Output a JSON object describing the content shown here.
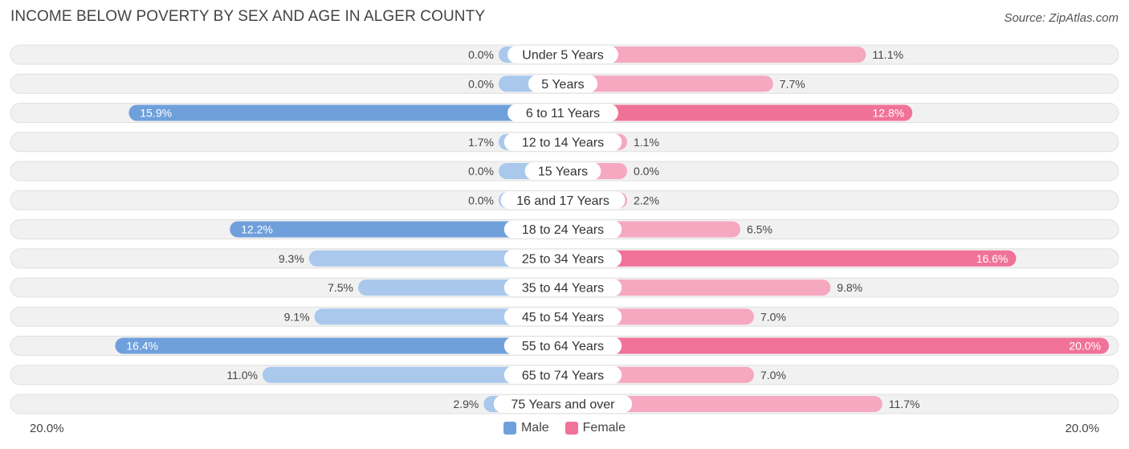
{
  "title": "INCOME BELOW POVERTY BY SEX AND AGE IN ALGER COUNTY",
  "source": "Source: ZipAtlas.com",
  "colors": {
    "male": "#6fa0dc",
    "male_light": "#a9c8ec",
    "female": "#f07298",
    "female_light": "#f6a8c0",
    "row_bg": "#f1f1f1",
    "row_border": "#e0e0e0"
  },
  "chart_data": {
    "type": "bar",
    "orientation": "horizontal-diverging",
    "categories": [
      "Under 5 Years",
      "5 Years",
      "6 to 11 Years",
      "12 to 14 Years",
      "15 Years",
      "16 and 17 Years",
      "18 to 24 Years",
      "25 to 34 Years",
      "35 to 44 Years",
      "45 to 54 Years",
      "55 to 64 Years",
      "65 to 74 Years",
      "75 Years and over"
    ],
    "series": [
      {
        "name": "Male",
        "values": [
          0.0,
          0.0,
          15.9,
          1.7,
          0.0,
          0.0,
          12.2,
          9.3,
          7.5,
          9.1,
          16.4,
          11.0,
          2.9
        ],
        "labels": [
          "0.0%",
          "0.0%",
          "15.9%",
          "1.7%",
          "0.0%",
          "0.0%",
          "12.2%",
          "9.3%",
          "7.5%",
          "9.1%",
          "16.4%",
          "11.0%",
          "2.9%"
        ]
      },
      {
        "name": "Female",
        "values": [
          11.1,
          7.7,
          12.8,
          1.1,
          0.0,
          2.2,
          6.5,
          16.6,
          9.8,
          7.0,
          20.0,
          7.0,
          11.7
        ],
        "labels": [
          "11.1%",
          "7.7%",
          "12.8%",
          "1.1%",
          "0.0%",
          "2.2%",
          "6.5%",
          "16.6%",
          "9.8%",
          "7.0%",
          "20.0%",
          "7.0%",
          "11.7%"
        ]
      }
    ],
    "xlim": [
      0,
      20
    ],
    "axis_min_label": "20.0%",
    "axis_max_label": "20.0%",
    "legend_position": "bottom-center"
  }
}
